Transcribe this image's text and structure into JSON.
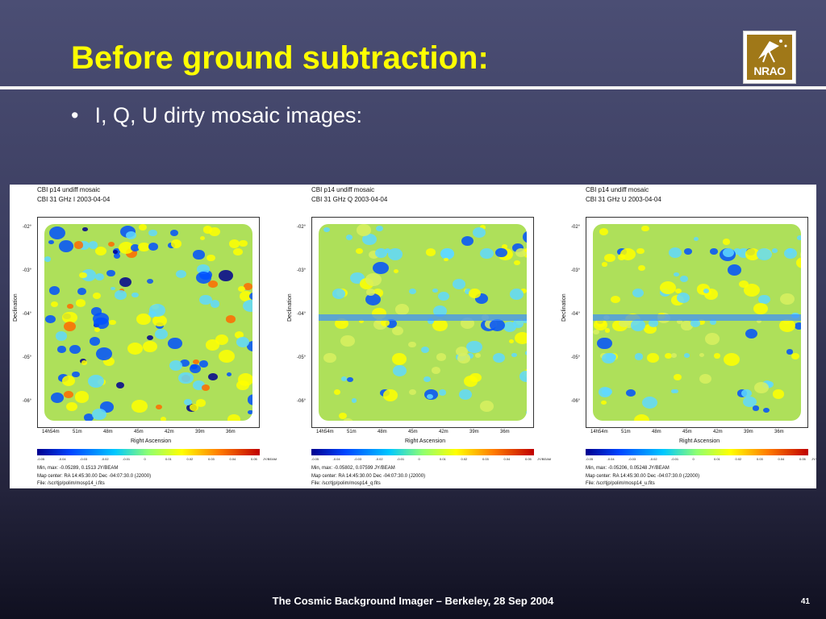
{
  "slide": {
    "title": "Before ground subtraction:",
    "bullet": "I, Q, U dirty mosaic images:",
    "footer": "The Cosmic Background Imager – Berkeley, 28 Sep 2004",
    "page_number": "41",
    "logo_text": "NRAO"
  },
  "panels": [
    {
      "heading1": "CBI p14 undiff mosaic",
      "heading2": "CBI 31 GHz I 2003-04-04",
      "ylabel": "Declination",
      "xlabel": "Right Ascension",
      "yticks": [
        "-02°",
        "-03°",
        "-04°",
        "-05°",
        "-06°"
      ],
      "xticks": [
        "14h54m",
        "51m",
        "48m",
        "45m",
        "42m",
        "39m",
        "36m"
      ],
      "colorbar_ticks": [
        "-0.05",
        "-0.04",
        "-0.03",
        "-0.02",
        "-0.01",
        "0",
        "0.01",
        "0.02",
        "0.03",
        "0.04",
        "0.05"
      ],
      "colorbar_unit": "JY/BEAM",
      "minmax": "Min, max: -0.05289, 0.1513 JY/BEAM",
      "map_center": "Map center: RA 14:45:30.00 Dec -04:07:30.0 (J2000)",
      "file": "File: /scr/tjp/polim/mosp14_i.fits"
    },
    {
      "heading1": "CBI p14 undiff mosaic",
      "heading2": "CBI 31 GHz Q 2003-04-04",
      "ylabel": "Declination",
      "xlabel": "Right Ascension",
      "yticks": [
        "-02°",
        "-03°",
        "-04°",
        "-05°",
        "-06°"
      ],
      "xticks": [
        "14h54m",
        "51m",
        "48m",
        "45m",
        "42m",
        "39m",
        "36m"
      ],
      "colorbar_ticks": [
        "-0.05",
        "-0.04",
        "-0.03",
        "-0.02",
        "-0.01",
        "0",
        "0.01",
        "0.02",
        "0.03",
        "0.04",
        "0.05"
      ],
      "colorbar_unit": "JY/BEAM",
      "minmax": "Min, max: -0.05802, 0.07599 JY/BEAM",
      "map_center": "Map center: RA 14:45:30.00 Dec -04:07:30.0 (J2000)",
      "file": "File: /scr/tjp/polim/mosp14_q.fits"
    },
    {
      "heading1": "CBI p14 undiff mosaic",
      "heading2": "CBI 31 GHz U 2003-04-04",
      "ylabel": "Declination",
      "xlabel": "Right Ascension",
      "yticks": [
        "-02°",
        "-03°",
        "-04°",
        "-05°",
        "-06°"
      ],
      "xticks": [
        "14h54m",
        "51m",
        "48m",
        "45m",
        "42m",
        "39m",
        "36m"
      ],
      "colorbar_ticks": [
        "-0.05",
        "-0.04",
        "-0.03",
        "-0.02",
        "-0.01",
        "0",
        "0.01",
        "0.02",
        "0.03",
        "0.04",
        "0.05"
      ],
      "colorbar_unit": "JY/BEAM",
      "minmax": "Min, max: -0.05206, 0.05248 JY/BEAM",
      "map_center": "Map center: RA 14:45:30.00 Dec -04:07:30.0 (J2000)",
      "file": "File: /scr/tjp/polim/mosp14_u.fits"
    }
  ],
  "colors": {
    "title": "#ffff00",
    "background_top": "#4b4e74",
    "background_bottom": "#101020",
    "map_base": "#aee05a",
    "map_positive": "#ffff00",
    "map_hot": "#ff6a00",
    "map_negative": "#0050ff",
    "map_deep_negative": "#00008f"
  }
}
